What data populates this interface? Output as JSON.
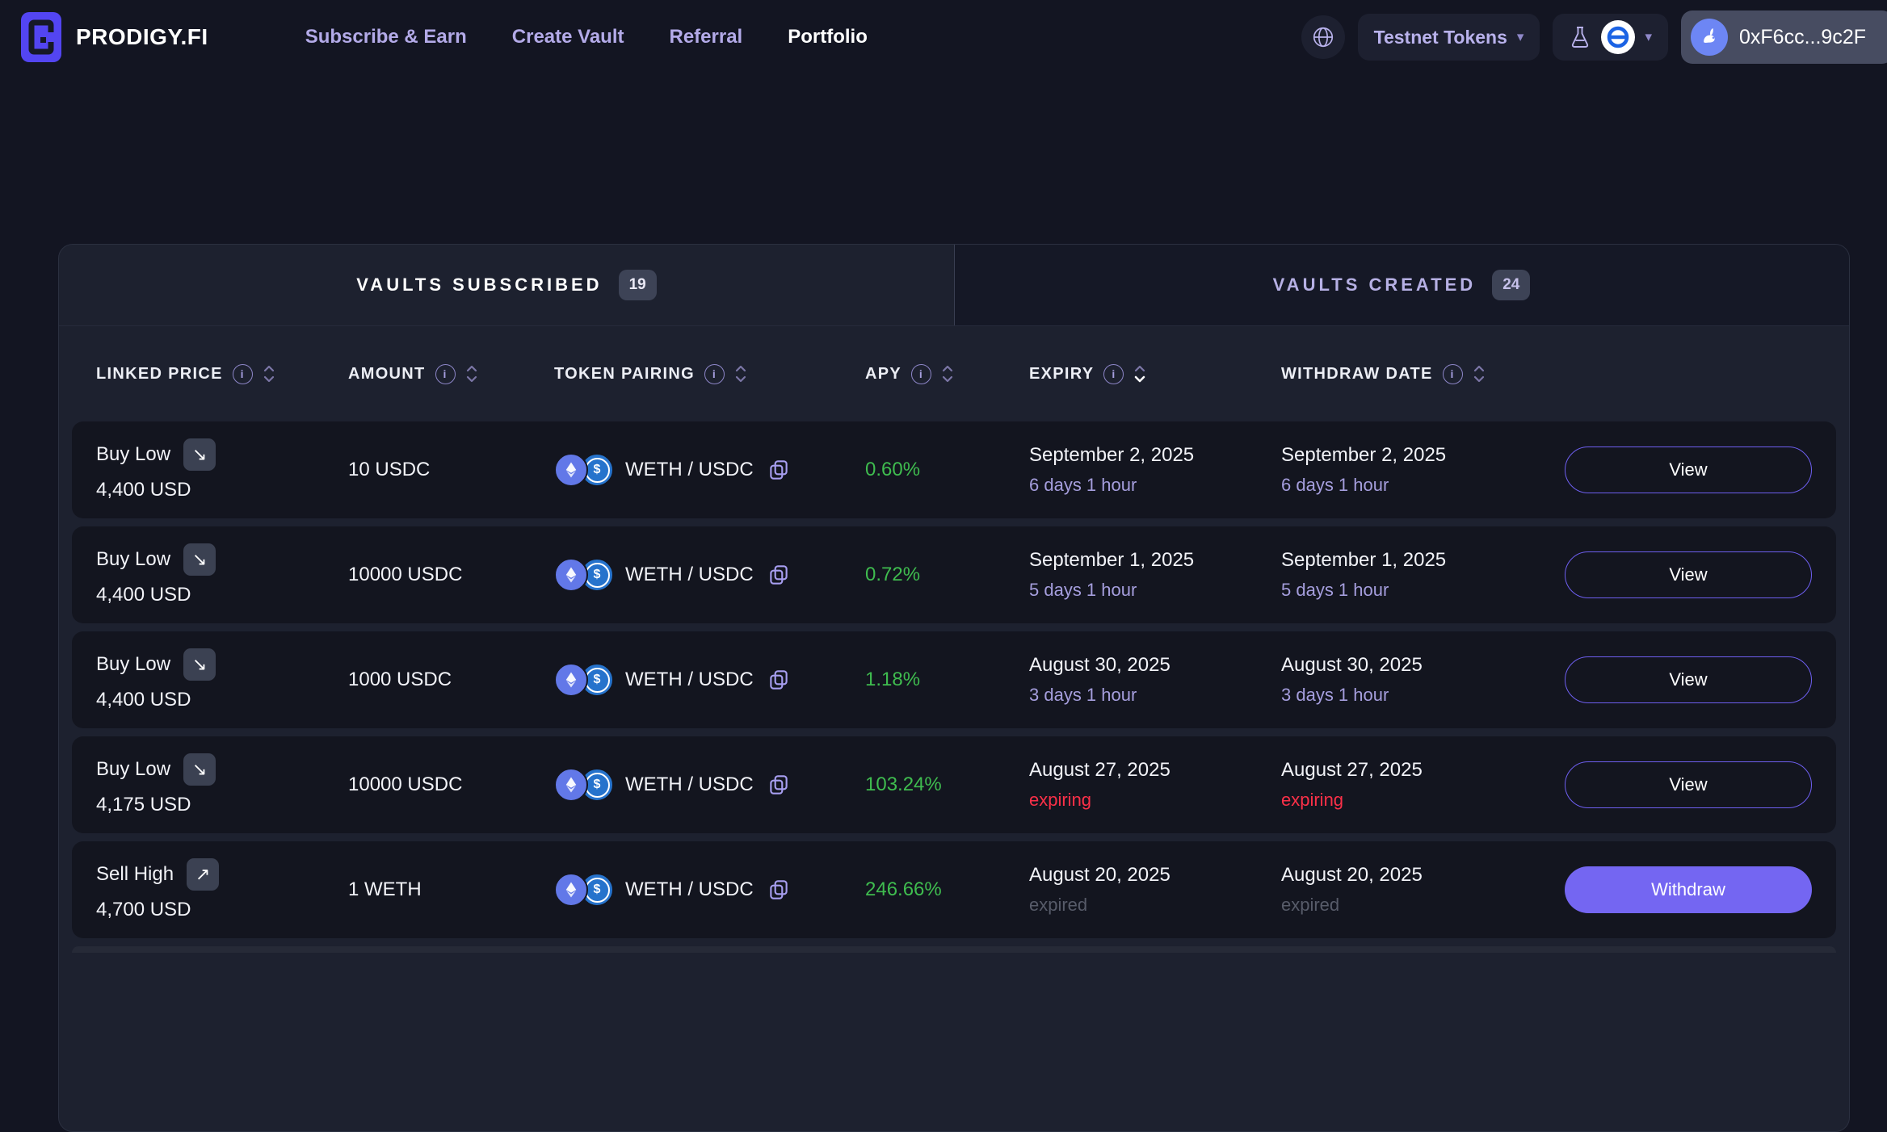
{
  "brand": {
    "name": "PRODIGY.FI"
  },
  "nav": {
    "items": [
      {
        "label": "Subscribe & Earn",
        "active": false
      },
      {
        "label": "Create Vault",
        "active": false
      },
      {
        "label": "Referral",
        "active": false
      },
      {
        "label": "Portfolio",
        "active": true
      }
    ]
  },
  "header_right": {
    "network_dropdown_label": "Testnet Tokens",
    "caret": "▾",
    "wallet_address": "0xF6cc...9c2F"
  },
  "tabs": [
    {
      "label": "VAULTS SUBSCRIBED",
      "count": "19",
      "active": true
    },
    {
      "label": "VAULTS CREATED",
      "count": "24",
      "active": false
    }
  ],
  "table": {
    "columns": [
      {
        "key": "linked-price",
        "label": "LINKED PRICE",
        "sort_active": null
      },
      {
        "key": "amount",
        "label": "AMOUNT",
        "sort_active": null
      },
      {
        "key": "token-pairing",
        "label": "TOKEN PAIRING",
        "sort_active": null
      },
      {
        "key": "apy",
        "label": "APY",
        "sort_active": null
      },
      {
        "key": "expiry",
        "label": "EXPIRY",
        "sort_active": "desc"
      },
      {
        "key": "withdraw-date",
        "label": "WITHDRAW DATE",
        "sort_active": null
      }
    ],
    "rows": [
      {
        "strategy": "Buy Low",
        "direction": "down-right",
        "direction_icon": "↘",
        "linked_price": "4,400 USD",
        "amount": "10 USDC",
        "pair": "WETH / USDC",
        "apy": "0.60%",
        "expiry_date": "September 2, 2025",
        "expiry_note": "6 days 1 hour",
        "withdraw_date": "September 2, 2025",
        "withdraw_note": "6 days 1 hour",
        "status": "upcoming",
        "action_label": "View",
        "action_variant": "outline"
      },
      {
        "strategy": "Buy Low",
        "direction": "down-right",
        "direction_icon": "↘",
        "linked_price": "4,400 USD",
        "amount": "10000 USDC",
        "pair": "WETH / USDC",
        "apy": "0.72%",
        "expiry_date": "September 1, 2025",
        "expiry_note": "5 days 1 hour",
        "withdraw_date": "September 1, 2025",
        "withdraw_note": "5 days 1 hour",
        "status": "upcoming",
        "action_label": "View",
        "action_variant": "outline"
      },
      {
        "strategy": "Buy Low",
        "direction": "down-right",
        "direction_icon": "↘",
        "linked_price": "4,400 USD",
        "amount": "1000 USDC",
        "pair": "WETH / USDC",
        "apy": "1.18%",
        "expiry_date": "August 30, 2025",
        "expiry_note": "3 days 1 hour",
        "withdraw_date": "August 30, 2025",
        "withdraw_note": "3 days 1 hour",
        "status": "upcoming",
        "action_label": "View",
        "action_variant": "outline"
      },
      {
        "strategy": "Buy Low",
        "direction": "down-right",
        "direction_icon": "↘",
        "linked_price": "4,175 USD",
        "amount": "10000 USDC",
        "pair": "WETH / USDC",
        "apy": "103.24%",
        "expiry_date": "August 27, 2025",
        "expiry_note": "expiring",
        "withdraw_date": "August 27, 2025",
        "withdraw_note": "expiring",
        "status": "expiring",
        "action_label": "View",
        "action_variant": "outline"
      },
      {
        "strategy": "Sell High",
        "direction": "up-right",
        "direction_icon": "↗",
        "linked_price": "4,700 USD",
        "amount": "1 WETH",
        "pair": "WETH / USDC",
        "apy": "246.66%",
        "expiry_date": "August 20, 2025",
        "expiry_note": "expired",
        "withdraw_date": "August 20, 2025",
        "withdraw_note": "expired",
        "status": "expired",
        "action_label": "Withdraw",
        "action_variant": "filled"
      }
    ]
  },
  "colors": {
    "accent_purple": "#7466f2",
    "apy_green": "#3fbc4f",
    "expiring_red": "#fb3048",
    "expired_gray": "#575b69",
    "lavender_text": "#a59edd"
  }
}
